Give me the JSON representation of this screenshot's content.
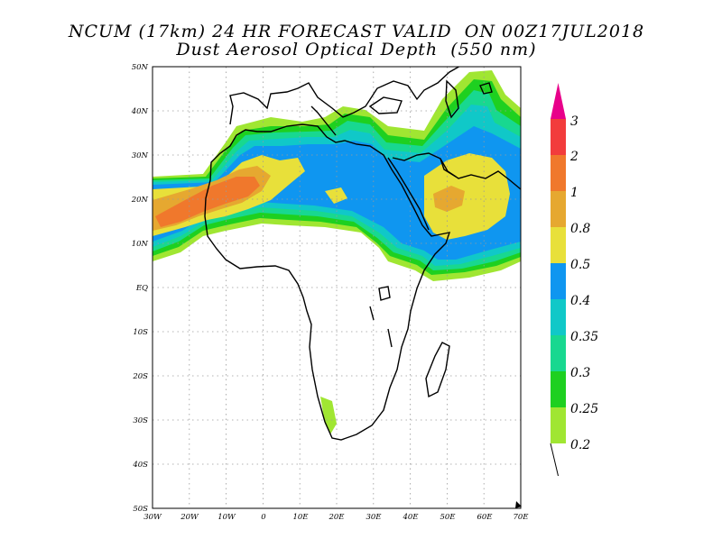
{
  "title_line1": "NCUM (17km) 24 HR FORECAST VALID  ON 00Z17JUL2018",
  "title_line2": "Dust Aerosol Optical Depth  (550 nm)",
  "map": {
    "lon_range": [
      -30,
      70
    ],
    "lat_range": [
      -50,
      50
    ],
    "grid_step_deg": 10,
    "grid": true,
    "lon_ticks": [
      "30W",
      "20W",
      "10W",
      "0",
      "10E",
      "20E",
      "30E",
      "40E",
      "50E",
      "60E",
      "70E"
    ],
    "lat_ticks": [
      "50N",
      "40N",
      "30N",
      "20N",
      "10N",
      "EQ",
      "10S",
      "20S",
      "30S",
      "40S",
      "50S"
    ]
  },
  "colorbar": {
    "labels": [
      "3",
      "2",
      "1",
      "0.8",
      "0.5",
      "0.4",
      "0.35",
      "0.3",
      "0.25",
      "0.2"
    ],
    "colors": [
      "#e8008a",
      "#f23c3c",
      "#f0782c",
      "#e6a830",
      "#e8e03a",
      "#0f96f0",
      "#10c8c8",
      "#18d890",
      "#1ed020",
      "#a0e632"
    ]
  },
  "icons": [
    "arrow-head-icon"
  ]
}
